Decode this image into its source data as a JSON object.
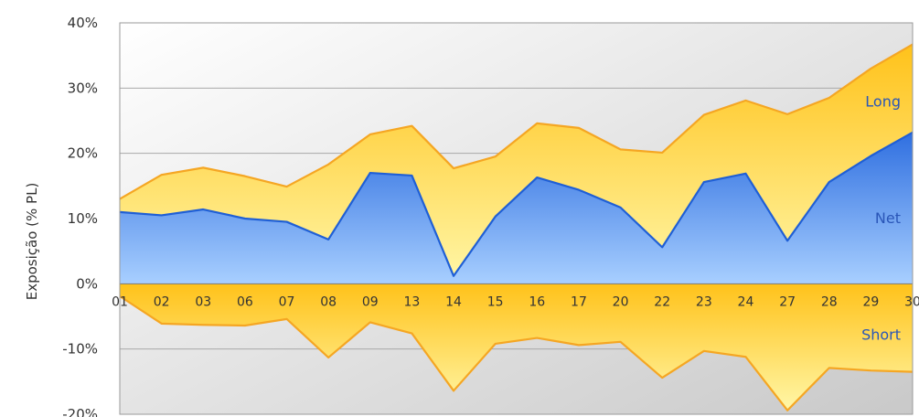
{
  "chart_data": {
    "type": "area",
    "title": "",
    "xlabel": "",
    "ylabel": "Exposição (% PL)",
    "ylim": [
      -20,
      40
    ],
    "yticks": [
      -20,
      -10,
      0,
      10,
      20,
      30,
      40
    ],
    "ytick_labels": [
      "-20%",
      "-10%",
      "0%",
      "10%",
      "20%",
      "30%",
      "40%"
    ],
    "categories": [
      "01",
      "02",
      "03",
      "06",
      "07",
      "08",
      "09",
      "13",
      "14",
      "15",
      "16",
      "17",
      "20",
      "22",
      "23",
      "24",
      "27",
      "28",
      "29",
      "30"
    ],
    "grid": true,
    "series": [
      {
        "name": "Long",
        "color": "#F5A623",
        "values": [
          13.0,
          16.7,
          17.8,
          16.5,
          14.9,
          18.3,
          22.9,
          24.2,
          17.7,
          19.5,
          24.6,
          23.9,
          20.6,
          20.1,
          25.9,
          28.1,
          26.0,
          28.5,
          33.0,
          36.7
        ]
      },
      {
        "name": "Net",
        "color": "#1F5FD6",
        "values": [
          11.0,
          10.5,
          11.4,
          10.0,
          9.5,
          6.8,
          17.0,
          16.6,
          1.2,
          10.3,
          16.3,
          14.4,
          11.7,
          5.6,
          15.6,
          16.9,
          6.6,
          15.6,
          19.6,
          23.2
        ]
      },
      {
        "name": "Short",
        "color": "#F5A623",
        "values": [
          -1.9,
          -6.1,
          -6.3,
          -6.4,
          -5.4,
          -11.3,
          -5.9,
          -7.6,
          -16.4,
          -9.2,
          -8.3,
          -9.4,
          -8.9,
          -14.4,
          -10.3,
          -11.2,
          -19.4,
          -12.9,
          -13.3,
          -13.5
        ]
      }
    ]
  }
}
